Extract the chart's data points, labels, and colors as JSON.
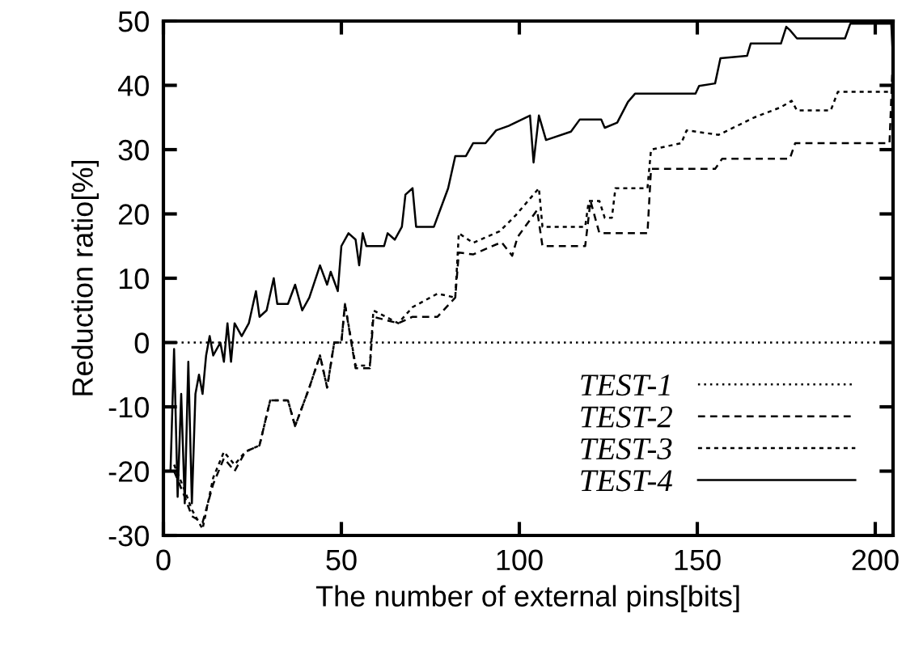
{
  "chart_data": {
    "type": "line",
    "xlabel": "The number of external pins[bits]",
    "ylabel": "Reduction ratio[%]",
    "xlim": [
      0,
      205
    ],
    "xticks": [
      0,
      50,
      100,
      150,
      200
    ],
    "ylim": [
      -30,
      50
    ],
    "yticks": [
      -30,
      -20,
      -10,
      0,
      10,
      20,
      30,
      40,
      50
    ],
    "grid": false,
    "legend": "bottom right",
    "marker": "none",
    "series": [
      {
        "name": "TEST-1",
        "color": "#000000",
        "line_style": "dotted",
        "x": [
          0,
          205
        ],
        "values": [
          0,
          0
        ]
      },
      {
        "name": "TEST-2",
        "color": "#000000",
        "line_style": "dashed",
        "x": [
          3,
          6,
          8,
          11,
          14,
          17,
          20,
          23,
          27,
          30,
          35,
          37,
          41,
          44,
          46,
          48,
          50,
          51,
          54,
          58,
          59,
          66,
          70,
          77,
          82,
          83,
          87,
          95,
          98,
          99.5,
          105,
          106.5,
          118.5,
          120,
          122.5,
          136,
          137,
          155,
          157,
          176,
          177.5,
          204,
          205
        ],
        "values": [
          -20,
          -24,
          -27,
          -28,
          -22,
          -18,
          -20,
          -17,
          -16,
          -9,
          -9,
          -13,
          -7,
          -2,
          -7,
          0,
          0,
          6,
          -4,
          -4,
          4,
          3,
          4,
          4,
          7,
          14,
          13.7,
          15.6,
          13.5,
          16.4,
          20.6,
          15,
          15,
          22,
          17,
          17,
          27,
          27,
          28.6,
          28.6,
          31,
          31,
          45
        ]
      },
      {
        "name": "TEST-3",
        "color": "#000000",
        "line_style": "dashed",
        "x": [
          3,
          6,
          8,
          11,
          14,
          17,
          20,
          23,
          27,
          30,
          35,
          37,
          41,
          44,
          46,
          48,
          50,
          51,
          54,
          58,
          59,
          66,
          70,
          77,
          82,
          83,
          87,
          94.5,
          99,
          105.5,
          106.5,
          118.5,
          119.5,
          122.5,
          124,
          126,
          127,
          136,
          137,
          145.5,
          147,
          156,
          166,
          173.5,
          176.5,
          178,
          187.5,
          189.5,
          205
        ],
        "values": [
          -19,
          -23,
          -26,
          -29,
          -21,
          -17,
          -19,
          -17,
          -16,
          -9,
          -9,
          -13,
          -7,
          -2,
          -7,
          0,
          0,
          6,
          -3.6,
          -3.6,
          5,
          3,
          5.5,
          7.6,
          7,
          17,
          15.5,
          17.3,
          19.8,
          24,
          18,
          18,
          22,
          22,
          19.4,
          19.4,
          24,
          24,
          30,
          31,
          33,
          32.3,
          35,
          36.6,
          37.6,
          36.1,
          36.1,
          39,
          39
        ]
      },
      {
        "name": "TEST-4",
        "color": "#000000",
        "line_style": "solid",
        "x": [
          2,
          3,
          4,
          5,
          6,
          7,
          8,
          9,
          10,
          11,
          12,
          13,
          14,
          16,
          17,
          18,
          19,
          20,
          22,
          24,
          26,
          27,
          29,
          31,
          32,
          35,
          37,
          39,
          41,
          44,
          46,
          47,
          49,
          50,
          52,
          54,
          55,
          56,
          57,
          62,
          63,
          65,
          67,
          68,
          70,
          71,
          76,
          78,
          80,
          82,
          85,
          87,
          89,
          90.5,
          93.5,
          97,
          103,
          104,
          105.5,
          107.5,
          114.5,
          117,
          123,
          124,
          127.5,
          130.5,
          132.5,
          149.5,
          150.5,
          155,
          156.5,
          164,
          165,
          173.5,
          175,
          176,
          178,
          191.5,
          193,
          204.5,
          205
        ],
        "values": [
          -20,
          -1,
          -24,
          -8,
          -25,
          -3,
          -25,
          -8,
          -5,
          -8,
          -2,
          1,
          -2,
          0,
          -3,
          3,
          -3,
          3,
          1,
          3,
          8,
          4,
          5,
          10,
          6,
          6,
          9,
          5,
          7,
          12,
          9,
          11,
          8,
          15,
          17,
          16,
          12,
          17,
          15,
          15,
          17,
          16,
          18,
          23,
          24,
          18,
          18,
          21,
          24,
          29,
          29,
          31,
          31,
          31,
          33,
          33.7,
          35.3,
          28,
          35.3,
          31.5,
          32.8,
          34.7,
          34.7,
          33.4,
          34.2,
          37.4,
          38.7,
          38.7,
          39.9,
          40.3,
          44.2,
          44.6,
          46.5,
          46.5,
          49.1,
          48.6,
          47.3,
          47.3,
          49.6,
          49.6,
          44
        ]
      }
    ]
  }
}
